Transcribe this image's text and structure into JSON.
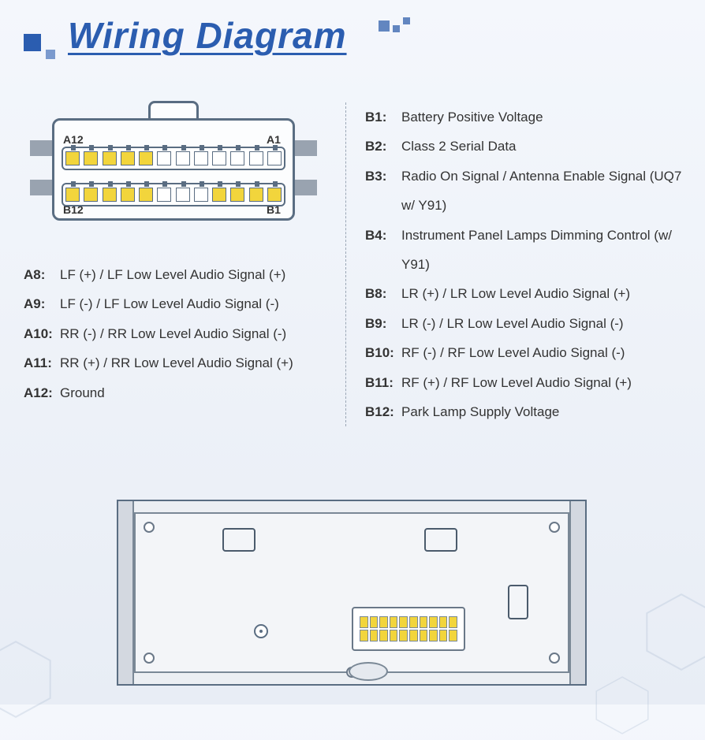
{
  "title": "Wiring Diagram",
  "colors": {
    "title": "#2b5db0",
    "accent_yellow": "#f2d53c",
    "line": "#5a6d82",
    "bg_top": "#f4f7fc",
    "bg_bottom": "#e8edf5",
    "clip_gray": "#99a3b0",
    "text": "#333333"
  },
  "connector": {
    "corner_labels": {
      "a_left": "A12",
      "a_right": "A1",
      "b_left": "B12",
      "b_right": "B1"
    },
    "pins_per_row": 12,
    "rowA_active": [
      true,
      true,
      true,
      true,
      true,
      false,
      false,
      false,
      false,
      false,
      false,
      false
    ],
    "rowB_active": [
      true,
      true,
      true,
      true,
      true,
      false,
      false,
      false,
      true,
      true,
      true,
      true
    ]
  },
  "left_column": [
    {
      "key": "A8:",
      "val": "LF (+) / LF Low Level Audio Signal (+)"
    },
    {
      "key": "A9:",
      "val": "LF (-) / LF Low Level Audio Signal (-)"
    },
    {
      "key": "A10:",
      "val": "RR (-) / RR Low Level Audio Signal (-)"
    },
    {
      "key": "A11:",
      "val": "RR (+) / RR Low Level Audio Signal (+)"
    },
    {
      "key": "A12:",
      "val": "Ground"
    }
  ],
  "right_column": [
    {
      "key": "B1:",
      "val": "Battery Positive Voltage"
    },
    {
      "key": "B2:",
      "val": "Class 2 Serial Data"
    },
    {
      "key": "B3:",
      "val": "Radio On Signal / Antenna Enable Signal (UQ7 w/ Y91)"
    },
    {
      "key": "B4:",
      "val": "Instrument Panel Lamps Dimming Control (w/ Y91)"
    },
    {
      "key": "B8:",
      "val": "LR (+) / LR Low Level Audio Signal (+)"
    },
    {
      "key": "B9:",
      "val": "LR (-) / LR Low Level Audio Signal (-)"
    },
    {
      "key": "B10:",
      "val": "RF (-) / RF Low Level Audio Signal (-)"
    },
    {
      "key": "B11:",
      "val": "RF (+) / RF Low Level Audio Signal (+)"
    },
    {
      "key": "B12:",
      "val": "Park Lamp Supply Voltage"
    }
  ],
  "radio_unit": {
    "connector_pins": 20
  }
}
